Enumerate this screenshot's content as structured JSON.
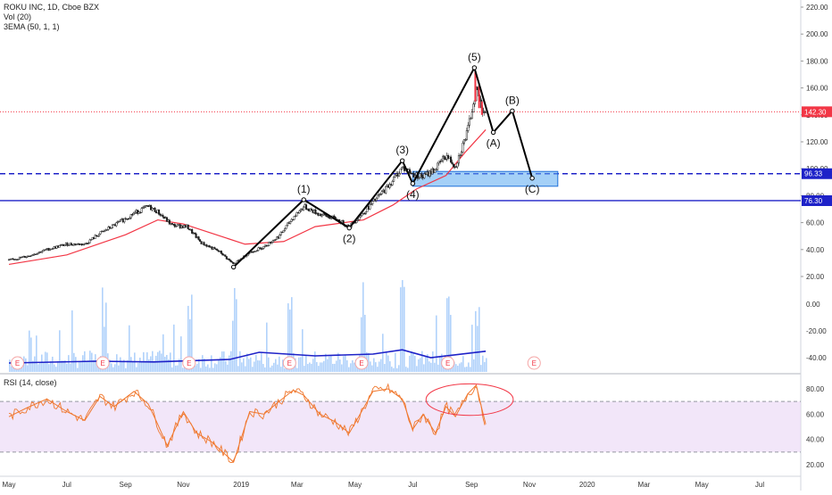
{
  "chart": {
    "symbol_line": "ROKU INC, 1D, Cboe BZX",
    "volume_label": "Vol (20)",
    "ema_label": "3EMA (50, 1, 1)",
    "rsi_label": "RSI (14, close)"
  },
  "chart_data": [
    {
      "type": "line",
      "panel": "price",
      "y_axis_ticks": [
        20,
        40,
        60,
        80,
        100,
        120,
        140,
        160,
        180,
        200,
        220
      ],
      "y_axis_tick_labels": [
        "20.00",
        "40.00",
        "60.00",
        "80.00",
        "100.00",
        "120.00",
        "140.00",
        "160.00",
        "180.00",
        "200.00",
        "220.00"
      ],
      "ylim": [
        16,
        226
      ],
      "x_axis_labels": [
        "May",
        "Jul",
        "Sep",
        "Nov",
        "2019",
        "Mar",
        "May",
        "Jul",
        "Sep",
        "Nov",
        "2020",
        "Mar",
        "May",
        "Jul"
      ],
      "price_levels": [
        {
          "value": 142.3,
          "label": "142.30",
          "color": "#f23645",
          "style": "dotted"
        },
        {
          "value": 96.33,
          "label": "96.33",
          "color": "#1e22c8",
          "style": "dashed"
        },
        {
          "value": 76.3,
          "label": "76.30",
          "color": "#1e22c8",
          "style": "solid"
        }
      ],
      "close_series": [
        {
          "date": "2018-05-01",
          "close": 32
        },
        {
          "date": "2018-05-20",
          "close": 35
        },
        {
          "date": "2018-06-10",
          "close": 40
        },
        {
          "date": "2018-07-01",
          "close": 44
        },
        {
          "date": "2018-07-20",
          "close": 44
        },
        {
          "date": "2018-08-05",
          "close": 52
        },
        {
          "date": "2018-08-20",
          "close": 58
        },
        {
          "date": "2018-09-10",
          "close": 67
        },
        {
          "date": "2018-09-25",
          "close": 72
        },
        {
          "date": "2018-10-05",
          "close": 68
        },
        {
          "date": "2018-10-20",
          "close": 58
        },
        {
          "date": "2018-11-05",
          "close": 57
        },
        {
          "date": "2018-11-20",
          "close": 45
        },
        {
          "date": "2018-12-10",
          "close": 38
        },
        {
          "date": "2018-12-24",
          "close": 29
        },
        {
          "date": "2019-01-10",
          "close": 38
        },
        {
          "date": "2019-01-25",
          "close": 42
        },
        {
          "date": "2019-02-10",
          "close": 50
        },
        {
          "date": "2019-02-25",
          "close": 64
        },
        {
          "date": "2019-03-08",
          "close": 72
        },
        {
          "date": "2019-03-25",
          "close": 66
        },
        {
          "date": "2019-04-10",
          "close": 63
        },
        {
          "date": "2019-04-25",
          "close": 57
        },
        {
          "date": "2019-05-08",
          "close": 66
        },
        {
          "date": "2019-05-20",
          "close": 75
        },
        {
          "date": "2019-06-05",
          "close": 87
        },
        {
          "date": "2019-06-20",
          "close": 101
        },
        {
          "date": "2019-07-01",
          "close": 96
        },
        {
          "date": "2019-07-12",
          "close": 94
        },
        {
          "date": "2019-07-25",
          "close": 100
        },
        {
          "date": "2019-08-05",
          "close": 110
        },
        {
          "date": "2019-08-15",
          "close": 102
        },
        {
          "date": "2019-08-28",
          "close": 128
        },
        {
          "date": "2019-09-06",
          "close": 160
        },
        {
          "date": "2019-09-12",
          "close": 145
        },
        {
          "date": "2019-09-16",
          "close": 142.3
        }
      ],
      "ema_series": [
        {
          "date": "2018-05-01",
          "value": 29
        },
        {
          "date": "2018-07-01",
          "value": 36
        },
        {
          "date": "2018-09-01",
          "value": 51
        },
        {
          "date": "2018-10-05",
          "value": 62
        },
        {
          "date": "2018-11-01",
          "value": 59
        },
        {
          "date": "2018-12-10",
          "value": 50
        },
        {
          "date": "2019-01-05",
          "value": 44
        },
        {
          "date": "2019-02-15",
          "value": 46
        },
        {
          "date": "2019-03-20",
          "value": 57
        },
        {
          "date": "2019-05-10",
          "value": 62
        },
        {
          "date": "2019-06-10",
          "value": 73
        },
        {
          "date": "2019-07-05",
          "value": 85
        },
        {
          "date": "2019-08-05",
          "value": 95
        },
        {
          "date": "2019-08-25",
          "value": 112
        },
        {
          "date": "2019-09-16",
          "value": 129
        }
      ],
      "elliott_wave": [
        {
          "label": "",
          "date": "2018-12-24",
          "value": 27
        },
        {
          "label": "(1)",
          "date": "2019-03-08",
          "value": 77
        },
        {
          "label": "(2)",
          "date": "2019-04-25",
          "value": 56
        },
        {
          "label": "(3)",
          "date": "2019-06-20",
          "value": 106
        },
        {
          "label": "(4)",
          "date": "2019-07-01",
          "value": 89
        },
        {
          "label": "(5)",
          "date": "2019-09-04",
          "value": 175
        },
        {
          "label": "(A)",
          "date": "2019-09-24",
          "value": 127
        },
        {
          "label": "(B)",
          "date": "2019-10-14",
          "value": 143
        },
        {
          "label": "(C)",
          "date": "2019-11-04",
          "value": 93
        }
      ],
      "target_zone": {
        "date_from": "2019-07-01",
        "date_to": "2019-12-01",
        "value_from": 87,
        "value_to": 98
      },
      "earnings_dates": [
        "2018-05-10",
        "2018-08-08",
        "2018-11-07",
        "2019-02-21",
        "2019-05-08",
        "2019-08-07",
        "2019-11-06"
      ],
      "earnings_marker": "E"
    },
    {
      "type": "bar",
      "panel": "volume",
      "volume_ema": [
        {
          "date": "2018-05-01",
          "value": 0.25
        },
        {
          "date": "2018-08-01",
          "value": 0.3
        },
        {
          "date": "2018-10-01",
          "value": 0.28
        },
        {
          "date": "2018-12-20",
          "value": 0.35
        },
        {
          "date": "2019-01-20",
          "value": 0.55
        },
        {
          "date": "2019-03-20",
          "value": 0.45
        },
        {
          "date": "2019-05-20",
          "value": 0.5
        },
        {
          "date": "2019-06-20",
          "value": 0.62
        },
        {
          "date": "2019-07-20",
          "value": 0.4
        },
        {
          "date": "2019-09-16",
          "value": 0.58
        }
      ]
    },
    {
      "type": "line",
      "panel": "rsi",
      "y_axis_ticks": [
        20,
        40,
        60,
        80
      ],
      "y_axis_tick_labels": [
        "20.00",
        "40.00",
        "60.00",
        "80.00"
      ],
      "ylim": [
        16,
        89
      ],
      "overbought": 70,
      "oversold": 30,
      "rsi_series": [
        {
          "date": "2018-05-01",
          "value": 58
        },
        {
          "date": "2018-05-20",
          "value": 65
        },
        {
          "date": "2018-06-10",
          "value": 72
        },
        {
          "date": "2018-07-01",
          "value": 62
        },
        {
          "date": "2018-07-20",
          "value": 55
        },
        {
          "date": "2018-08-05",
          "value": 74
        },
        {
          "date": "2018-08-20",
          "value": 66
        },
        {
          "date": "2018-09-10",
          "value": 78
        },
        {
          "date": "2018-09-25",
          "value": 68
        },
        {
          "date": "2018-10-05",
          "value": 52
        },
        {
          "date": "2018-10-15",
          "value": 35
        },
        {
          "date": "2018-11-01",
          "value": 62
        },
        {
          "date": "2018-11-15",
          "value": 45
        },
        {
          "date": "2018-12-01",
          "value": 38
        },
        {
          "date": "2018-12-24",
          "value": 22
        },
        {
          "date": "2019-01-10",
          "value": 62
        },
        {
          "date": "2019-01-25",
          "value": 60
        },
        {
          "date": "2019-02-10",
          "value": 70
        },
        {
          "date": "2019-02-25",
          "value": 79
        },
        {
          "date": "2019-03-08",
          "value": 75
        },
        {
          "date": "2019-03-25",
          "value": 60
        },
        {
          "date": "2019-04-10",
          "value": 54
        },
        {
          "date": "2019-04-25",
          "value": 45
        },
        {
          "date": "2019-05-08",
          "value": 62
        },
        {
          "date": "2019-05-20",
          "value": 78
        },
        {
          "date": "2019-06-05",
          "value": 80
        },
        {
          "date": "2019-06-20",
          "value": 72
        },
        {
          "date": "2019-07-01",
          "value": 48
        },
        {
          "date": "2019-07-12",
          "value": 60
        },
        {
          "date": "2019-07-25",
          "value": 45
        },
        {
          "date": "2019-08-05",
          "value": 66
        },
        {
          "date": "2019-08-15",
          "value": 58
        },
        {
          "date": "2019-08-28",
          "value": 76
        },
        {
          "date": "2019-09-06",
          "value": 83
        },
        {
          "date": "2019-09-12",
          "value": 64
        },
        {
          "date": "2019-09-16",
          "value": 52
        }
      ],
      "highlight_ellipse": {
        "date_from": "2019-07-15",
        "date_to": "2019-10-15",
        "value_from": 59,
        "value_to": 84
      }
    }
  ]
}
